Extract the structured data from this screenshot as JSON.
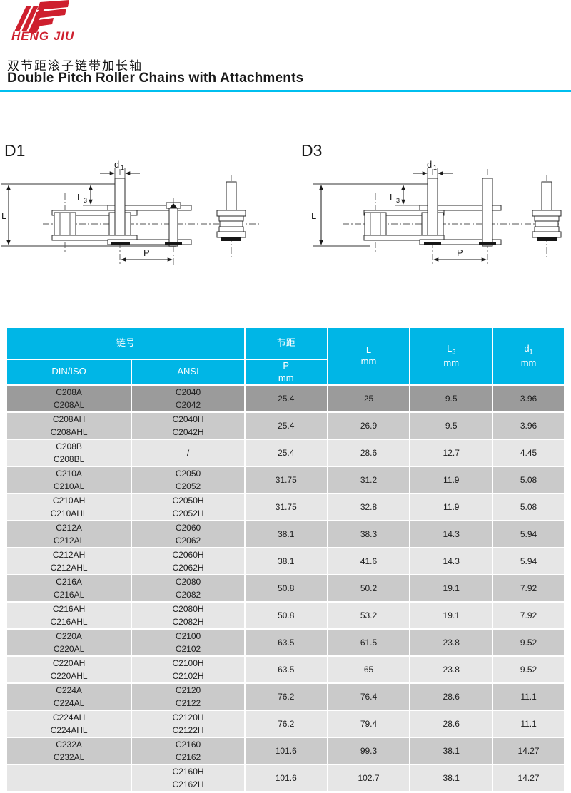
{
  "brand": {
    "name": "HENG JIU",
    "color": "#ce1f2e"
  },
  "header": {
    "title_zh": "双节距滚子链带加长轴",
    "title_en": "Double Pitch Roller Chains with Attachments",
    "accent_color": "#00bfef"
  },
  "diagrams": {
    "d1_label": "D1",
    "d3_label": "D3",
    "dims": {
      "d_sym": "d",
      "d_sub": "1",
      "l3_sym": "L",
      "l3_sub": "3",
      "l": "L",
      "p": "P"
    }
  },
  "table": {
    "header_color": "#00b6e6",
    "row_colors": {
      "first": "#9b9b9b",
      "mid": "#cacaca",
      "light": "#e6e6e6"
    },
    "columns": {
      "group_chain": "链号",
      "din_iso": "DIN/ISO",
      "ansi": "ANSI",
      "group_pitch": "节距",
      "pitch_sym": "P",
      "pitch_unit": "mm",
      "l_sym": "L",
      "l_unit": "mm",
      "l3_sym": "L",
      "l3_sub": "3",
      "l3_unit": "mm",
      "d1_sym": "d",
      "d1_sub": "1",
      "d1_unit": "mm"
    },
    "rows": [
      {
        "din": [
          "C208A",
          "C208AL"
        ],
        "ansi": [
          "C2040",
          "C2042"
        ],
        "p": "25.4",
        "l": "25",
        "l3": "9.5",
        "d1": "3.96"
      },
      {
        "din": [
          "C208AH",
          "C208AHL"
        ],
        "ansi": [
          "C2040H",
          "C2042H"
        ],
        "p": "25.4",
        "l": "26.9",
        "l3": "9.5",
        "d1": "3.96"
      },
      {
        "din": [
          "C208B",
          "C208BL"
        ],
        "ansi": [
          "/"
        ],
        "p": "25.4",
        "l": "28.6",
        "l3": "12.7",
        "d1": "4.45"
      },
      {
        "din": [
          "C210A",
          "C210AL"
        ],
        "ansi": [
          "C2050",
          "C2052"
        ],
        "p": "31.75",
        "l": "31.2",
        "l3": "11.9",
        "d1": "5.08"
      },
      {
        "din": [
          "C210AH",
          "C210AHL"
        ],
        "ansi": [
          "C2050H",
          "C2052H"
        ],
        "p": "31.75",
        "l": "32.8",
        "l3": "11.9",
        "d1": "5.08"
      },
      {
        "din": [
          "C212A",
          "C212AL"
        ],
        "ansi": [
          "C2060",
          "C2062"
        ],
        "p": "38.1",
        "l": "38.3",
        "l3": "14.3",
        "d1": "5.94"
      },
      {
        "din": [
          "C212AH",
          "C212AHL"
        ],
        "ansi": [
          "C2060H",
          "C2062H"
        ],
        "p": "38.1",
        "l": "41.6",
        "l3": "14.3",
        "d1": "5.94"
      },
      {
        "din": [
          "C216A",
          "C216AL"
        ],
        "ansi": [
          "C2080",
          "C2082"
        ],
        "p": "50.8",
        "l": "50.2",
        "l3": "19.1",
        "d1": "7.92"
      },
      {
        "din": [
          "C216AH",
          "C216AHL"
        ],
        "ansi": [
          "C2080H",
          "C2082H"
        ],
        "p": "50.8",
        "l": "53.2",
        "l3": "19.1",
        "d1": "7.92"
      },
      {
        "din": [
          "C220A",
          "C220AL"
        ],
        "ansi": [
          "C2100",
          "C2102"
        ],
        "p": "63.5",
        "l": "61.5",
        "l3": "23.8",
        "d1": "9.52"
      },
      {
        "din": [
          "C220AH",
          "C220AHL"
        ],
        "ansi": [
          "C2100H",
          "C2102H"
        ],
        "p": "63.5",
        "l": "65",
        "l3": "23.8",
        "d1": "9.52"
      },
      {
        "din": [
          "C224A",
          "C224AL"
        ],
        "ansi": [
          "C2120",
          "C2122"
        ],
        "p": "76.2",
        "l": "76.4",
        "l3": "28.6",
        "d1": "11.1"
      },
      {
        "din": [
          "C224AH",
          "C224AHL"
        ],
        "ansi": [
          "C2120H",
          "C2122H"
        ],
        "p": "76.2",
        "l": "79.4",
        "l3": "28.6",
        "d1": "11.1"
      },
      {
        "din": [
          "C232A",
          "C232AL"
        ],
        "ansi": [
          "C2160",
          "C2162"
        ],
        "p": "101.6",
        "l": "99.3",
        "l3": "38.1",
        "d1": "14.27"
      },
      {
        "din": [],
        "ansi": [
          "C2160H",
          "C2162H"
        ],
        "p": "101.6",
        "l": "102.7",
        "l3": "38.1",
        "d1": "14.27"
      }
    ]
  }
}
